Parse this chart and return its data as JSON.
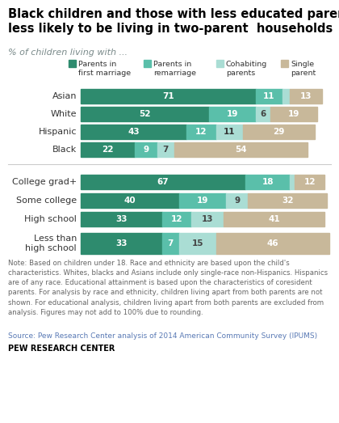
{
  "title": "Black children and those with less educated parents\nless likely to be living in two-parent  households",
  "subtitle": "% of children living with ...",
  "legend_labels": [
    "Parents in\nfirst marriage",
    "Parents in\nremarriage",
    "Cohabiting\nparents",
    "Single\nparent"
  ],
  "colors": [
    "#2e8b6e",
    "#5abfaa",
    "#aaddd4",
    "#c8b89a"
  ],
  "race_categories": [
    "Asian",
    "White",
    "Hispanic",
    "Black"
  ],
  "race_data": [
    [
      71,
      11,
      3,
      13
    ],
    [
      52,
      19,
      6,
      19
    ],
    [
      43,
      12,
      11,
      29
    ],
    [
      22,
      9,
      7,
      54
    ]
  ],
  "edu_categories": [
    "College grad+",
    "Some college",
    "High school",
    "Less than\nhigh school"
  ],
  "edu_data": [
    [
      67,
      18,
      2,
      12
    ],
    [
      40,
      19,
      9,
      32
    ],
    [
      33,
      12,
      13,
      41
    ],
    [
      33,
      7,
      15,
      46
    ]
  ],
  "note_text": "Note: Based on children under 18. Race and ethnicity are based upon the child's\ncharacteristics. Whites, blacks and Asians include only single-race non-Hispanics. Hispanics\nare of any race. Educational attainment is based upon the characteristics of coresident\nparents. For analysis by race and ethnicity, children living apart from both parents are not\nshown. For educational analysis, children living apart from both parents are excluded from\nanalysis. Figures may not add to 100% due to rounding.",
  "source_text": "Source: Pew Research Center analysis of 2014 American Community Survey (IPUMS)",
  "branding": "PEW RESEARCH CENTER",
  "bg_color": "#ffffff",
  "title_color": "#000000",
  "subtitle_color": "#7a8a8a",
  "note_color": "#666666",
  "source_color": "#5a7ab5",
  "bar_text_color_dark": [
    "white",
    "white",
    "#555555",
    "white"
  ],
  "bar_text_color_small_threshold": 8
}
